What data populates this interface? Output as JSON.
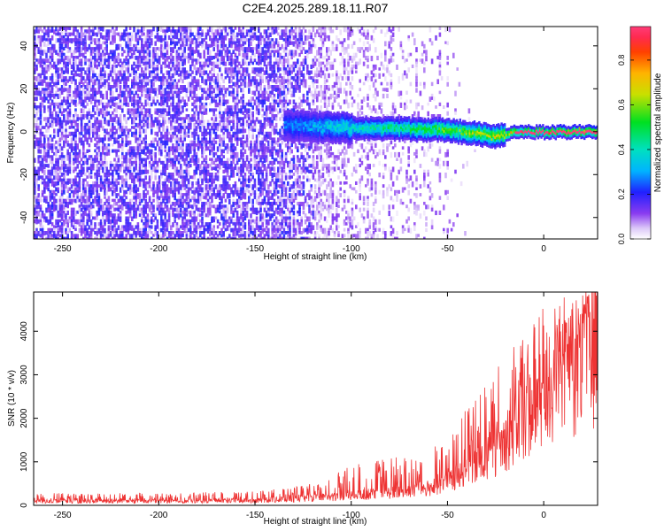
{
  "title": "C2E4.2025.289.18.11.R07",
  "chart_data": [
    {
      "type": "heatmap",
      "xlabel": "Height of straight line (km)",
      "ylabel": "Frequency (Hz)",
      "xlim": [
        -265,
        28
      ],
      "ylim": [
        -50,
        49
      ],
      "xticks": [
        -250,
        -200,
        -150,
        -100,
        -50,
        0
      ],
      "yticks": [
        -40,
        -20,
        0,
        20,
        40
      ],
      "grid": false,
      "colorbar": {
        "label": "Normalized spectral amplitude",
        "range": [
          0,
          0.95
        ],
        "ticks": [
          "0.0",
          "0.2",
          "0.4",
          "0.6",
          "0.8"
        ],
        "colormap": "rainbow"
      },
      "features": {
        "noise_region_x": [
          -265,
          -95
        ],
        "noise_amplitude": 0.08,
        "signal_start_x": -135,
        "signal_band_center_freq": [
          [
            -135,
            3
          ],
          [
            -100,
            2
          ],
          [
            -50,
            1
          ],
          [
            -25,
            -2
          ],
          [
            -15,
            0
          ],
          [
            28,
            0
          ]
        ],
        "signal_peak_amplitude": 0.9
      }
    },
    {
      "type": "line",
      "xlabel": "Height of straight line (km)",
      "ylabel": "SNR (10 * v/v)",
      "xlim": [
        -265,
        28
      ],
      "ylim": [
        0,
        4900
      ],
      "xticks": [
        -250,
        -200,
        -150,
        -100,
        -50,
        0
      ],
      "yticks": [
        0,
        1000,
        2000,
        3000,
        4000
      ],
      "color": "#ee3333",
      "series": [
        {
          "name": "SNR",
          "x": [
            -265,
            -200,
            -150,
            -120,
            -100,
            -80,
            -60,
            -50,
            -40,
            -30,
            -20,
            -10,
            0,
            10,
            20,
            28
          ],
          "base": [
            100,
            100,
            120,
            180,
            250,
            320,
            430,
            570,
            790,
            1150,
            1650,
            2280,
            2720,
            3130,
            3600,
            4000
          ],
          "peak": [
            280,
            280,
            320,
            500,
            920,
            1100,
            1300,
            1580,
            2450,
            2780,
            3500,
            4020,
            4650,
            4820,
            4900,
            4700
          ]
        }
      ]
    }
  ]
}
